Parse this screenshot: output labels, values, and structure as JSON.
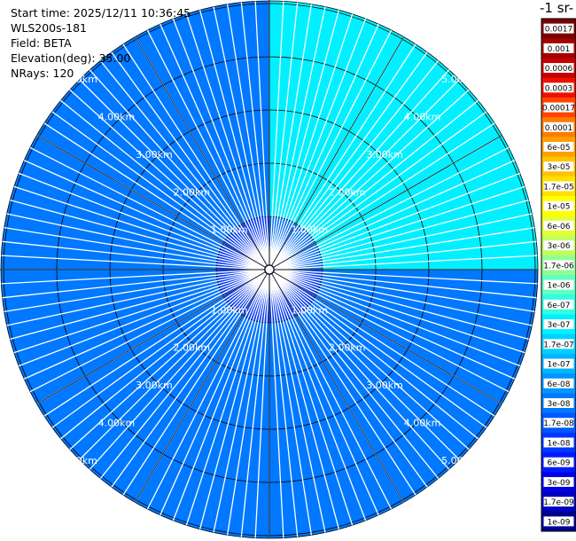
{
  "info": {
    "start_time": "Start time: 2025/12/11 10:36:45",
    "instrument": "WLS200s-181",
    "field": "Field: BETA",
    "elevation": "Elevation(deg): 35.00",
    "nrays": "NRays: 120"
  },
  "chart_data": {
    "type": "heatmap",
    "projection": "polar-ppi",
    "title": "",
    "rays": 120,
    "elevation_deg": 35.0,
    "range_labels": [
      "1.00km",
      "2.00km",
      "3.00km",
      "4.00km",
      "5.00km"
    ],
    "range_values_km": [
      1,
      2,
      3,
      4,
      5
    ],
    "colorbar": {
      "title_fragment": "-1 sr-",
      "scale": "log",
      "ticks": [
        "0.0017",
        "0.001",
        "0.0006",
        "0.0003",
        "0.00017",
        "0.0001",
        "6e-05",
        "3e-05",
        "1.7e-05",
        "1e-05",
        "6e-06",
        "3e-06",
        "1.7e-06",
        "1e-06",
        "6e-07",
        "3e-07",
        "1.7e-07",
        "1e-07",
        "6e-08",
        "3e-08",
        "1.7e-08",
        "1e-08",
        "6e-09",
        "3e-09",
        "1.7e-09",
        "1e-09"
      ],
      "colors": [
        "#7a0000",
        "#a30000",
        "#c80000",
        "#ee1100",
        "#ff4400",
        "#ff7a00",
        "#ffa000",
        "#ffc400",
        "#ffe000",
        "#ffff00",
        "#e6ff30",
        "#c0ff60",
        "#90ff90",
        "#60ffc0",
        "#30ffe0",
        "#00f0ff",
        "#00d2ff",
        "#00b4ff",
        "#0096ff",
        "#0078ff",
        "#0058ff",
        "#0038ff",
        "#001aff",
        "#0000e8",
        "#0000c0",
        "#000090"
      ]
    },
    "sectors": [
      {
        "from_deg": 0,
        "to_deg": 90,
        "typical_value": "3e-07"
      },
      {
        "from_deg": 90,
        "to_deg": 360,
        "typical_value": "3e-08"
      },
      {
        "inner_km": 1.0,
        "typical_value": "3e-09"
      }
    ]
  }
}
